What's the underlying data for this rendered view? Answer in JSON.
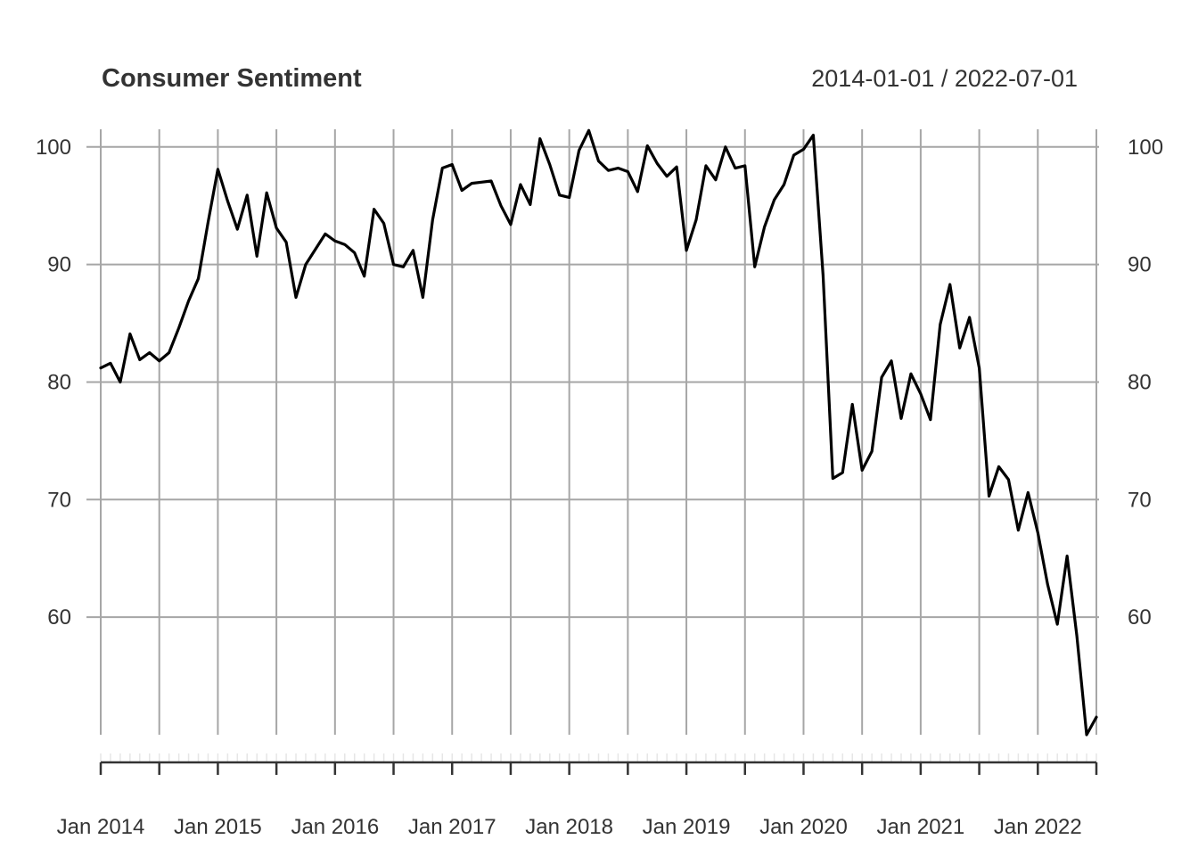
{
  "chart_data": {
    "type": "line",
    "title": "Consumer Sentiment",
    "date_range_label": "2014-01-01 / 2022-07-01",
    "xlabel": "",
    "ylabel": "",
    "ylim": [
      50,
      101.5
    ],
    "y_ticks": [
      60,
      70,
      80,
      90,
      100
    ],
    "x_tick_labels": [
      "Jan 2014",
      "Jan 2015",
      "Jan 2016",
      "Jan 2017",
      "Jan 2018",
      "Jan 2019",
      "Jan 2020",
      "Jan 2021",
      "Jan 2022"
    ],
    "start": "2014-01",
    "frequency": "monthly",
    "grid": true,
    "line_color": "#000000",
    "series": [
      {
        "name": "Consumer Sentiment",
        "values": [
          81.2,
          81.6,
          80.0,
          84.1,
          81.9,
          82.5,
          81.8,
          82.5,
          84.6,
          86.9,
          88.8,
          93.6,
          98.1,
          95.4,
          93.0,
          95.9,
          90.7,
          96.1,
          93.1,
          91.9,
          87.2,
          90.0,
          91.3,
          92.6,
          92.0,
          91.7,
          91.0,
          89.0,
          94.7,
          93.5,
          90.0,
          89.8,
          91.2,
          87.2,
          93.8,
          98.2,
          98.5,
          96.3,
          96.9,
          97.0,
          97.1,
          95.0,
          93.4,
          96.8,
          95.1,
          100.7,
          98.5,
          95.9,
          95.7,
          99.7,
          101.4,
          98.8,
          98.0,
          98.2,
          97.9,
          96.2,
          100.1,
          98.6,
          97.5,
          98.3,
          91.2,
          93.8,
          98.4,
          97.2,
          100.0,
          98.2,
          98.4,
          89.8,
          93.2,
          95.5,
          96.8,
          99.3,
          99.8,
          101.0,
          89.1,
          71.8,
          72.3,
          78.1,
          72.5,
          74.1,
          80.4,
          81.8,
          76.9,
          80.7,
          79.0,
          76.8,
          84.9,
          88.3,
          82.9,
          85.5,
          81.2,
          70.3,
          72.8,
          71.7,
          67.4,
          70.6,
          67.2,
          62.8,
          59.4,
          65.2,
          58.4,
          50.0,
          51.5
        ]
      }
    ]
  }
}
